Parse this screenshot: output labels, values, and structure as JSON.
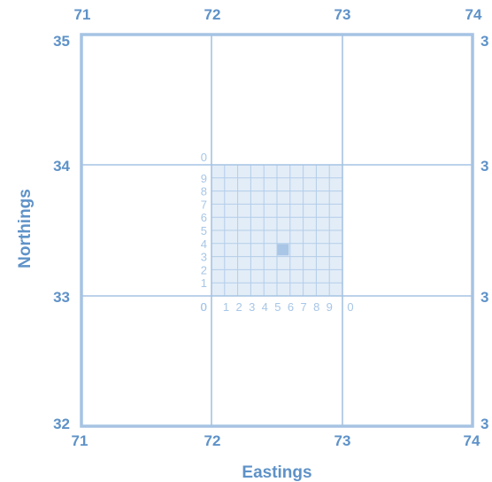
{
  "diagram": {
    "eastings_title": "Eastings",
    "northings_title": "Northings",
    "eastings_top": [
      "71",
      "72",
      "73",
      "74"
    ],
    "eastings_bottom": [
      "71",
      "72",
      "73",
      "74"
    ],
    "northings_left": [
      "35",
      "34",
      "33",
      "32"
    ],
    "northings_right": [
      "3",
      "3",
      "3",
      "3"
    ],
    "enlarged_square": {
      "easting": 72,
      "northing": 33,
      "x_digits": [
        "0",
        "1",
        "2",
        "3",
        "4",
        "5",
        "6",
        "7",
        "8",
        "9",
        "0"
      ],
      "y_digits": [
        "0",
        "1",
        "2",
        "3",
        "4",
        "5",
        "6",
        "7",
        "8",
        "9",
        "0"
      ]
    },
    "marked_point": {
      "easting": 72.55,
      "northing": 33.35
    },
    "colors": {
      "label_blue": "#5e92c8",
      "line_blue": "#a6c3e3",
      "digit_blue": "#a7c6e6",
      "square_fill": "#e3edf8",
      "marker_blue": "#a9c6e7"
    }
  }
}
